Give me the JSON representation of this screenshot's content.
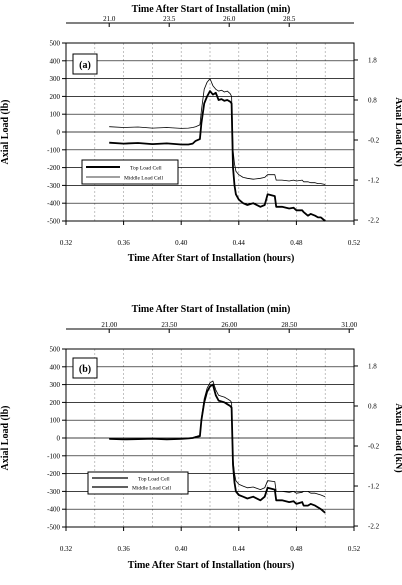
{
  "chart_data": [
    {
      "type": "line",
      "panel_label": "(a)",
      "xlabel": "Time After Start of Installation (hours)",
      "x2label": "Time After Start of Installation (min)",
      "ylabel": "Axial Load (lb)",
      "y2label": "Axial Load (kN)",
      "xlim": [
        0.32,
        0.52
      ],
      "ylim": [
        -500,
        500
      ],
      "x_ticks": [
        "0.32",
        "0.36",
        "0.40",
        "0.44",
        "0.48",
        "0.52"
      ],
      "y_ticks": [
        "500",
        "400",
        "300",
        "200",
        "100",
        "0",
        "-100",
        "-200",
        "-300",
        "-400",
        "-500"
      ],
      "x2_ticks": [
        {
          "label": "21.0",
          "value": 21.0
        },
        {
          "label": "23.5",
          "value": 23.5
        },
        {
          "label": "26.0",
          "value": 26.0
        },
        {
          "label": "28.5",
          "value": 28.5
        }
      ],
      "y2_ticks": [
        {
          "label": "1.8",
          "value": 1.8
        },
        {
          "label": "0.8",
          "value": 0.8
        },
        {
          "label": "-0.2",
          "value": -0.2
        },
        {
          "label": "-1.2",
          "value": -1.2
        },
        {
          "label": "-2.2",
          "value": -2.2
        }
      ],
      "legend_position": "left-middle",
      "grid": true,
      "series": [
        {
          "name": "Top Load Cell",
          "style": "thick",
          "x": [
            0.35,
            0.36,
            0.37,
            0.38,
            0.39,
            0.4,
            0.405,
            0.408,
            0.41,
            0.413,
            0.414,
            0.416,
            0.418,
            0.42,
            0.422,
            0.424,
            0.426,
            0.428,
            0.43,
            0.432,
            0.434,
            0.435,
            0.436,
            0.437,
            0.438,
            0.44,
            0.443,
            0.446,
            0.45,
            0.455,
            0.458,
            0.46,
            0.465,
            0.466,
            0.47,
            0.475,
            0.478,
            0.48,
            0.484,
            0.485,
            0.488,
            0.49,
            0.493,
            0.495,
            0.497,
            0.5
          ],
          "y": [
            -60,
            -65,
            -62,
            -68,
            -64,
            -70,
            -70,
            -65,
            -50,
            -40,
            50,
            160,
            200,
            230,
            210,
            220,
            180,
            185,
            175,
            180,
            170,
            160,
            -200,
            -300,
            -350,
            -380,
            -400,
            -410,
            -400,
            -420,
            -410,
            -350,
            -360,
            -420,
            -420,
            -430,
            -425,
            -440,
            -440,
            -450,
            -470,
            -460,
            -470,
            -480,
            -480,
            -500
          ]
        },
        {
          "name": "Middle Load Cell",
          "style": "thin",
          "x": [
            0.35,
            0.36,
            0.37,
            0.38,
            0.39,
            0.4,
            0.405,
            0.408,
            0.41,
            0.413,
            0.414,
            0.416,
            0.418,
            0.42,
            0.422,
            0.424,
            0.426,
            0.428,
            0.43,
            0.432,
            0.434,
            0.435,
            0.436,
            0.437,
            0.438,
            0.44,
            0.443,
            0.446,
            0.45,
            0.455,
            0.458,
            0.46,
            0.465,
            0.466,
            0.47,
            0.475,
            0.478,
            0.48,
            0.484,
            0.485,
            0.488,
            0.49,
            0.493,
            0.495,
            0.497,
            0.5
          ],
          "y": [
            30,
            25,
            28,
            22,
            25,
            20,
            22,
            25,
            30,
            40,
            120,
            240,
            280,
            300,
            260,
            240,
            230,
            235,
            225,
            230,
            215,
            200,
            -100,
            -180,
            -220,
            -240,
            -255,
            -260,
            -265,
            -260,
            -255,
            -240,
            -240,
            -270,
            -270,
            -275,
            -270,
            -275,
            -270,
            -280,
            -280,
            -285,
            -285,
            -290,
            -290,
            -295
          ]
        }
      ]
    },
    {
      "type": "line",
      "panel_label": "(b)",
      "xlabel": "Time After Start of Installation (hours)",
      "x2label": "Time After Start of Installation (min)",
      "ylabel": "Axial Load (lb)",
      "y2label": "Axial Load (kN)",
      "xlim": [
        0.32,
        0.52
      ],
      "ylim": [
        -500,
        500
      ],
      "x_ticks": [
        "0.32",
        "0.36",
        "0.40",
        "0.44",
        "0.48",
        "0.52"
      ],
      "y_ticks": [
        "500",
        "400",
        "300",
        "200",
        "100",
        "0",
        "-100",
        "-200",
        "-300",
        "-400",
        "-500"
      ],
      "x2_ticks": [
        {
          "label": "21.00",
          "value": 21.0
        },
        {
          "label": "23.50",
          "value": 23.5
        },
        {
          "label": "26.00",
          "value": 26.0
        },
        {
          "label": "28.50",
          "value": 28.5
        },
        {
          "label": "31.00",
          "value": 31.0
        }
      ],
      "y2_ticks": [
        {
          "label": "1.8",
          "value": 1.8
        },
        {
          "label": "0.8",
          "value": 0.8
        },
        {
          "label": "-0.2",
          "value": -0.2
        },
        {
          "label": "-1.2",
          "value": -1.2
        },
        {
          "label": "-2.2",
          "value": -2.2
        }
      ],
      "legend_position": "left-lower",
      "grid": true,
      "series": [
        {
          "name": "Top Load Cell",
          "style": "thick",
          "x": [
            0.35,
            0.36,
            0.37,
            0.38,
            0.39,
            0.4,
            0.405,
            0.408,
            0.41,
            0.413,
            0.414,
            0.416,
            0.418,
            0.42,
            0.422,
            0.424,
            0.426,
            0.428,
            0.43,
            0.432,
            0.434,
            0.435,
            0.436,
            0.437,
            0.438,
            0.44,
            0.443,
            0.446,
            0.45,
            0.455,
            0.458,
            0.46,
            0.465,
            0.466,
            0.47,
            0.475,
            0.478,
            0.48,
            0.484,
            0.485,
            0.488,
            0.49,
            0.493,
            0.495,
            0.497,
            0.5
          ],
          "y": [
            -5,
            -8,
            -6,
            -4,
            -8,
            -5,
            -2,
            0,
            5,
            10,
            100,
            200,
            260,
            290,
            300,
            240,
            210,
            205,
            200,
            190,
            180,
            170,
            -150,
            -250,
            -300,
            -320,
            -330,
            -340,
            -330,
            -350,
            -330,
            -280,
            -290,
            -350,
            -350,
            -360,
            -355,
            -370,
            -360,
            -380,
            -380,
            -370,
            -380,
            -390,
            -400,
            -420
          ]
        },
        {
          "name": "Middle Load Cell",
          "style": "thin",
          "x": [
            0.35,
            0.36,
            0.37,
            0.38,
            0.39,
            0.4,
            0.405,
            0.408,
            0.41,
            0.413,
            0.414,
            0.416,
            0.418,
            0.42,
            0.422,
            0.424,
            0.426,
            0.428,
            0.43,
            0.432,
            0.434,
            0.435,
            0.436,
            0.437,
            0.438,
            0.44,
            0.443,
            0.446,
            0.45,
            0.455,
            0.458,
            0.46,
            0.465,
            0.466,
            0.47,
            0.475,
            0.478,
            0.48,
            0.484,
            0.485,
            0.488,
            0.49,
            0.493,
            0.495,
            0.497,
            0.5
          ],
          "y": [
            -3,
            -5,
            -4,
            -2,
            -5,
            -3,
            0,
            2,
            8,
            15,
            110,
            220,
            280,
            310,
            320,
            270,
            240,
            235,
            230,
            220,
            210,
            200,
            -120,
            -200,
            -240,
            -260,
            -270,
            -280,
            -275,
            -290,
            -280,
            -240,
            -245,
            -300,
            -300,
            -305,
            -300,
            -310,
            -305,
            -300,
            -300,
            -310,
            -310,
            -315,
            -320,
            -330
          ]
        }
      ]
    }
  ]
}
